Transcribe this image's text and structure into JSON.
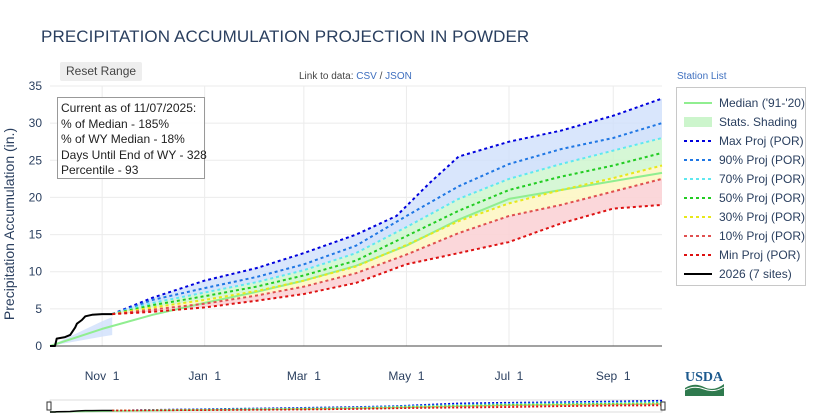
{
  "title": "PRECIPITATION ACCUMULATION PROJECTION IN POWDER",
  "reset_label": "Reset Range",
  "data_link": {
    "prefix": "Link to data:",
    "csv": "CSV",
    "sep": "/",
    "json": "JSON"
  },
  "station_list_label": "Station List",
  "info_lines": [
    "Current as of 11/07/2025:",
    "% of Median - 185%",
    "% of WY Median - 18%",
    "Days Until End of WY - 328",
    "Percentile - 93"
  ],
  "logo_text": "USDA",
  "colors": {
    "median": "#90ee90",
    "shading": "#ccf5cc",
    "max": "#0000dd",
    "p90": "#1f77e4",
    "p70": "#5ee8f0",
    "p50": "#22cc22",
    "p30": "#e8e81a",
    "p10": "#e05050",
    "min": "#dd1111",
    "current": "#000000",
    "band_high": "#cfe0fb",
    "band_mid": "#fdf6c4",
    "band_low": "#fbd3d6"
  },
  "chart_data": {
    "type": "line",
    "title": "PRECIPITATION ACCUMULATION PROJECTION IN POWDER",
    "xlabel": "",
    "ylabel": "Precipitation Accumulation (in.)",
    "ylim": [
      0,
      35
    ],
    "y_ticks": [
      0,
      5,
      10,
      15,
      20,
      25,
      30,
      35
    ],
    "x_ticks": [
      {
        "label": "Nov 1",
        "x": "2025-11-01"
      },
      {
        "label": "Jan 1",
        "x": "2026-01-01"
      },
      {
        "label": "Mar 1",
        "x": "2026-03-01"
      },
      {
        "label": "May 1",
        "x": "2026-05-01"
      },
      {
        "label": "Jul 1",
        "x": "2026-07-01"
      },
      {
        "label": "Sep 1",
        "x": "2026-09-01"
      }
    ],
    "xlim": [
      "2025-10-01",
      "2026-09-30"
    ],
    "grid": true,
    "legend_position": "right",
    "legend": [
      "Median ('91-'20)",
      "Stats. Shading",
      "Max Proj (POR)",
      "90% Proj (POR)",
      "70% Proj (POR)",
      "50% Proj (POR)",
      "30% Proj (POR)",
      "10% Proj (POR)",
      "Min Proj (POR)",
      "2026 (7 sites)"
    ],
    "series": [
      {
        "name": "Median ('91-'20)",
        "x": [
          "2025-10-01",
          "2025-11-01",
          "2025-12-01",
          "2026-01-01",
          "2026-02-01",
          "2026-03-01",
          "2026-04-01",
          "2026-05-01",
          "2026-06-01",
          "2026-07-01",
          "2026-08-01",
          "2026-09-01",
          "2026-09-30"
        ],
        "values": [
          0,
          2.3,
          4.2,
          5.8,
          7.3,
          8.8,
          10.8,
          13.5,
          17.0,
          19.8,
          21.0,
          22.2,
          23.3
        ]
      },
      {
        "name": "Max Proj (POR)",
        "x": [
          "2025-11-07",
          "2025-12-01",
          "2026-01-01",
          "2026-02-01",
          "2026-03-01",
          "2026-04-01",
          "2026-04-25",
          "2026-05-15",
          "2026-06-01",
          "2026-07-01",
          "2026-08-01",
          "2026-09-01",
          "2026-09-30"
        ],
        "values": [
          4.3,
          6.5,
          8.8,
          10.5,
          12.5,
          15.0,
          17.5,
          22.0,
          25.5,
          27.5,
          29.0,
          31.0,
          33.3
        ]
      },
      {
        "name": "90% Proj (POR)",
        "x": [
          "2025-11-07",
          "2025-12-01",
          "2026-01-01",
          "2026-02-01",
          "2026-03-01",
          "2026-04-01",
          "2026-05-01",
          "2026-06-01",
          "2026-07-01",
          "2026-08-01",
          "2026-09-01",
          "2026-09-30"
        ],
        "values": [
          4.3,
          6.2,
          7.8,
          9.3,
          11.0,
          13.5,
          17.5,
          21.5,
          24.5,
          26.5,
          28.0,
          30.0
        ]
      },
      {
        "name": "70% Proj (POR)",
        "x": [
          "2025-11-07",
          "2025-12-01",
          "2026-01-01",
          "2026-02-01",
          "2026-03-01",
          "2026-04-01",
          "2026-05-01",
          "2026-06-01",
          "2026-07-01",
          "2026-08-01",
          "2026-09-01",
          "2026-09-30"
        ],
        "values": [
          4.3,
          5.8,
          7.2,
          8.6,
          10.2,
          12.5,
          16.0,
          19.8,
          22.5,
          24.5,
          26.3,
          28.0
        ]
      },
      {
        "name": "50% Proj (POR)",
        "x": [
          "2025-11-07",
          "2025-12-01",
          "2026-01-01",
          "2026-02-01",
          "2026-03-01",
          "2026-04-01",
          "2026-05-01",
          "2026-06-01",
          "2026-07-01",
          "2026-08-01",
          "2026-09-01",
          "2026-09-30"
        ],
        "values": [
          4.3,
          5.5,
          6.7,
          8.0,
          9.5,
          11.5,
          14.8,
          18.2,
          21.0,
          22.8,
          24.3,
          26.0
        ]
      },
      {
        "name": "30% Proj (POR)",
        "x": [
          "2025-11-07",
          "2025-12-01",
          "2026-01-01",
          "2026-02-01",
          "2026-03-01",
          "2026-04-01",
          "2026-05-01",
          "2026-06-01",
          "2026-07-01",
          "2026-08-01",
          "2026-09-01",
          "2026-09-30"
        ],
        "values": [
          4.3,
          5.2,
          6.2,
          7.4,
          8.8,
          10.7,
          13.6,
          16.8,
          19.2,
          21.0,
          22.6,
          24.3
        ]
      },
      {
        "name": "10% Proj (POR)",
        "x": [
          "2025-11-07",
          "2025-12-01",
          "2026-01-01",
          "2026-02-01",
          "2026-03-01",
          "2026-04-01",
          "2026-05-01",
          "2026-06-01",
          "2026-07-01",
          "2026-08-01",
          "2026-09-01",
          "2026-09-30"
        ],
        "values": [
          4.3,
          4.9,
          5.7,
          6.8,
          8.0,
          9.8,
          12.3,
          15.2,
          17.5,
          19.0,
          20.8,
          22.5
        ]
      },
      {
        "name": "Min Proj (POR)",
        "x": [
          "2025-11-07",
          "2025-12-01",
          "2026-01-01",
          "2026-02-01",
          "2026-03-01",
          "2026-04-01",
          "2026-05-01",
          "2026-06-01",
          "2026-07-01",
          "2026-08-01",
          "2026-09-01",
          "2026-09-30"
        ],
        "values": [
          4.3,
          4.6,
          5.2,
          6.1,
          7.0,
          8.5,
          11.0,
          12.5,
          14.0,
          16.5,
          18.5,
          19.0
        ]
      },
      {
        "name": "2026 (7 sites)",
        "x": [
          "2025-10-01",
          "2025-10-04",
          "2025-10-05",
          "2025-10-10",
          "2025-10-13",
          "2025-10-16",
          "2025-10-17",
          "2025-10-20",
          "2025-10-22",
          "2025-10-26",
          "2025-11-01",
          "2025-11-07"
        ],
        "values": [
          0,
          0,
          1.0,
          1.2,
          1.5,
          2.5,
          3.0,
          3.5,
          4.0,
          4.2,
          4.3,
          4.3
        ]
      }
    ]
  }
}
